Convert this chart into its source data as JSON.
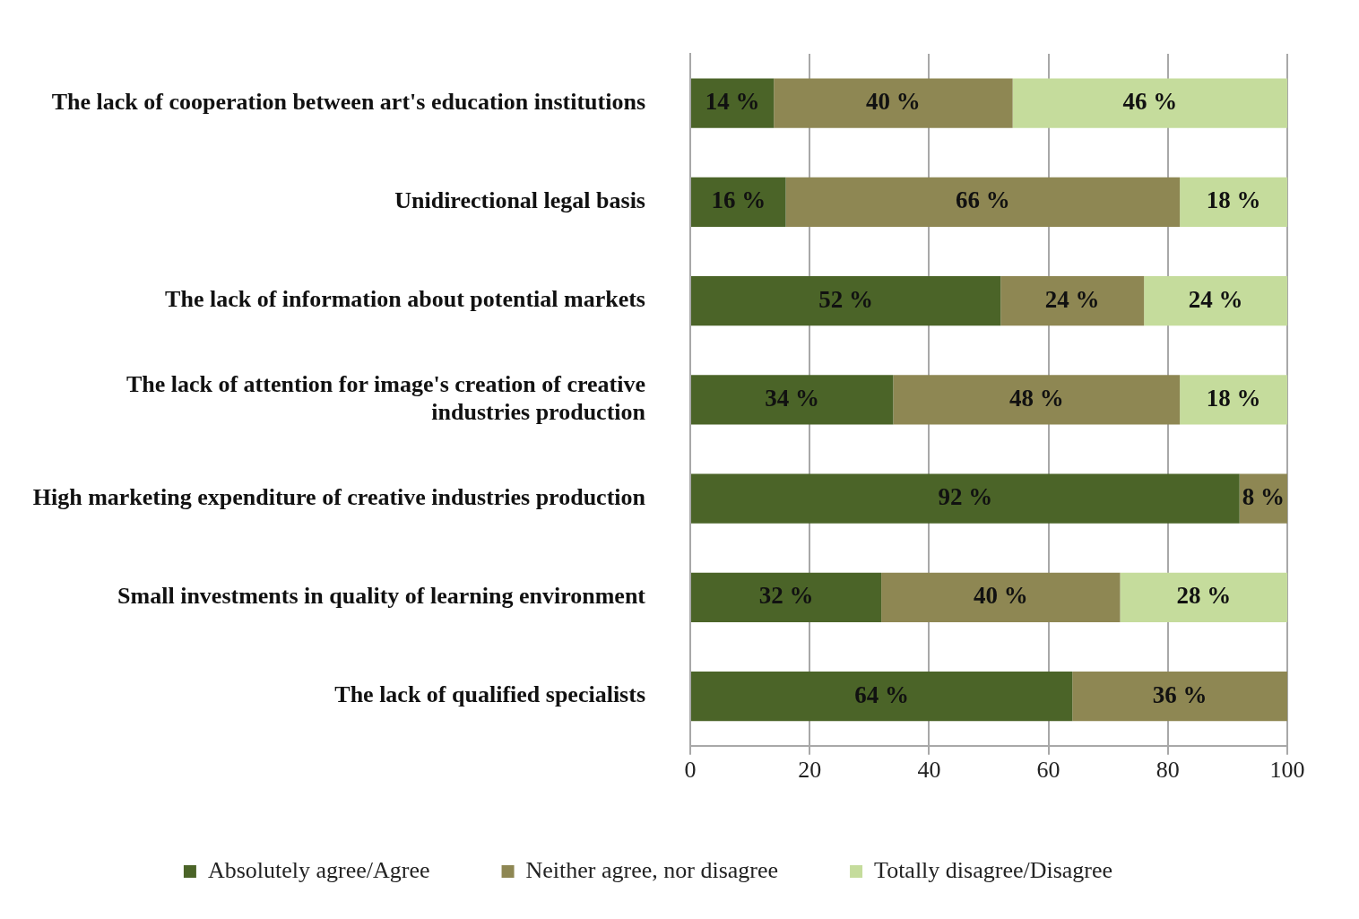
{
  "chart_data": {
    "type": "bar",
    "orientation": "horizontal",
    "stacked": true,
    "categories": [
      "The lack of cooperation between art's education institutions",
      "Unidirectional legal basis",
      "The lack of information about potential markets",
      "The lack of attention for image's creation of creative industries production",
      "High marketing expenditure of creative industries production",
      "Small investments in quality of learning environment",
      "The lack of qualified specialists"
    ],
    "series": [
      {
        "name": "Absolutely agree/Agree",
        "color": "#4b6428",
        "values": [
          14,
          16,
          52,
          34,
          92,
          32,
          64
        ],
        "value_labels": [
          "14 %",
          "16 %",
          "52 %",
          "34 %",
          "92 %",
          "32 %",
          "64 %"
        ]
      },
      {
        "name": "Neither agree, nor disagree",
        "color": "#8e8753",
        "values": [
          40,
          66,
          24,
          48,
          8,
          40,
          36
        ],
        "value_labels": [
          "40 %",
          "66 %",
          "24 %",
          "48 %",
          "8 %",
          "40 %",
          "36 %"
        ]
      },
      {
        "name": "Totally disagree/Disagree",
        "color": "#c5dc9c",
        "values": [
          46,
          18,
          24,
          18,
          null,
          28,
          null
        ],
        "value_labels": [
          "46 %",
          "18 %",
          "24 %",
          "18 %",
          null,
          "28 %",
          null
        ]
      }
    ],
    "xlim": [
      0,
      100
    ],
    "xticks": [
      0,
      20,
      40,
      60,
      80,
      100
    ],
    "grid": "x",
    "legend": "bottom"
  }
}
